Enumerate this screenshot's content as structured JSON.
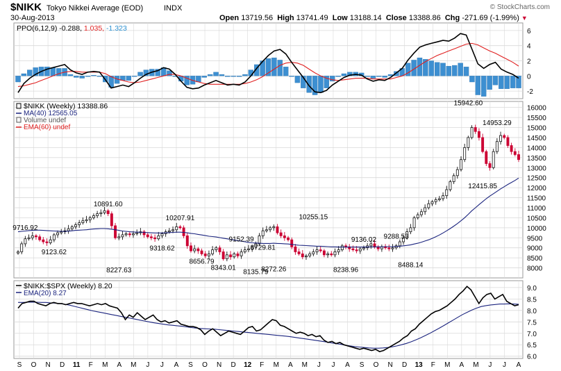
{
  "header": {
    "symbol": "$NIKK",
    "name": "Tokyo Nikkei Average (EOD)",
    "exchange": "INDX",
    "date": "30-Aug-2013",
    "watermark": "© StockCharts.com",
    "open_label": "Open",
    "open": "13719.56",
    "high_label": "High",
    "high": "13741.49",
    "low_label": "Low",
    "low": "13188.14",
    "close_label": "Close",
    "close": "13388.86",
    "chg_label": "Chg",
    "chg": "-271.69 (-1.99%)"
  },
  "colors": {
    "up": "#111111",
    "down": "#cc0033",
    "ma": "#1a237e",
    "ema": "#e02020",
    "ppo": "#000000",
    "hist": "#3d8fd1",
    "grid": "#d9d9d9",
    "frame": "#9a9a9a"
  },
  "chart_data": [
    {
      "type": "line",
      "panel": "ppo",
      "legend": [
        "PPO(6,12,9)",
        "-0.288,",
        "1.035,",
        "-1.323"
      ],
      "ylim": [
        -3,
        7
      ],
      "y_ticks": [
        "6",
        "4",
        "2",
        "0",
        "-2"
      ],
      "series": [
        {
          "name": "PPO",
          "values": [
            -2.2,
            -1.0,
            -0.3,
            0.2,
            0.6,
            0.9,
            1.1,
            1.3,
            1.5,
            0.8,
            0.4,
            0.2,
            0.5,
            0.6,
            0.5,
            -0.5,
            -1.6,
            -1.4,
            -1.2,
            -1.4,
            -0.9,
            -0.3,
            0.2,
            0.5,
            0.7,
            1.1,
            0.9,
            0.2,
            -0.7,
            -1.5,
            -1.7,
            -1.6,
            -1.2,
            -0.9,
            -0.6,
            -0.9,
            -1.2,
            -1.1,
            -1.2,
            -0.8,
            0.0,
            1.0,
            1.9,
            2.7,
            3.3,
            3.5,
            2.9,
            1.8,
            0.8,
            -0.2,
            -1.3,
            -2.1,
            -2.2,
            -1.9,
            -1.2,
            -0.7,
            -0.2,
            0.1,
            0.2,
            0.1,
            -0.4,
            -0.7,
            -0.5,
            -0.6,
            -0.2,
            0.4,
            1.0,
            2.1,
            3.0,
            3.8,
            4.1,
            4.3,
            4.5,
            4.7,
            4.6,
            5.0,
            5.6,
            5.4,
            3.5,
            1.6,
            1.0,
            1.5,
            1.8,
            0.9,
            0.5,
            0.2,
            -0.3
          ]
        },
        {
          "name": "Signal",
          "values": [
            -1.4,
            -1.3,
            -1.1,
            -0.9,
            -0.6,
            -0.3,
            0.0,
            0.3,
            0.5,
            0.6,
            0.6,
            0.5,
            0.5,
            0.5,
            0.5,
            0.3,
            -0.1,
            -0.4,
            -0.6,
            -0.8,
            -0.9,
            -0.8,
            -0.6,
            -0.4,
            -0.2,
            0.0,
            0.2,
            0.2,
            0.0,
            -0.3,
            -0.6,
            -0.8,
            -1.0,
            -1.1,
            -1.1,
            -1.1,
            -1.1,
            -1.1,
            -1.1,
            -1.0,
            -0.8,
            -0.5,
            -0.1,
            0.4,
            0.9,
            1.4,
            1.7,
            1.8,
            1.7,
            1.4,
            0.9,
            0.4,
            0.0,
            -0.3,
            -0.5,
            -0.6,
            -0.5,
            -0.4,
            -0.3,
            -0.3,
            -0.3,
            -0.4,
            -0.4,
            -0.4,
            -0.4,
            -0.2,
            0.0,
            0.4,
            0.9,
            1.4,
            1.9,
            2.3,
            2.7,
            3.0,
            3.3,
            3.6,
            3.9,
            4.2,
            4.3,
            4.1,
            3.7,
            3.3,
            3.0,
            2.6,
            2.2,
            1.8,
            1.3
          ]
        },
        {
          "name": "Histogram",
          "values": [
            -0.8,
            0.3,
            0.8,
            1.1,
            1.2,
            1.2,
            1.1,
            1.0,
            1.0,
            0.2,
            -0.2,
            -0.3,
            0.0,
            0.1,
            0.0,
            -0.8,
            -1.5,
            -1.0,
            -0.6,
            -0.6,
            0.0,
            0.5,
            0.8,
            0.9,
            0.9,
            1.1,
            0.7,
            0.0,
            -0.7,
            -1.2,
            -1.1,
            -0.8,
            -0.2,
            0.2,
            0.5,
            0.2,
            -0.1,
            0.0,
            -0.1,
            0.2,
            0.8,
            1.5,
            2.0,
            2.3,
            2.4,
            2.1,
            1.2,
            0.0,
            -0.9,
            -1.6,
            -2.2,
            -2.5,
            -2.2,
            -1.6,
            -0.7,
            -0.1,
            0.3,
            0.5,
            0.5,
            0.4,
            -0.1,
            -0.3,
            -0.1,
            -0.2,
            0.2,
            0.6,
            1.0,
            1.7,
            2.1,
            2.4,
            2.2,
            2.0,
            1.8,
            1.7,
            1.3,
            1.4,
            1.7,
            1.2,
            -0.8,
            -2.5,
            -2.7,
            -1.8,
            -1.2,
            -1.7,
            -1.7,
            -1.6,
            -1.6
          ]
        }
      ]
    },
    {
      "type": "candlestick",
      "panel": "price",
      "legend": [
        "$NIKK (Weekly) 13388.86",
        "MA(40) 12565.05",
        "Volume undef",
        "EMA(60) undef"
      ],
      "ylim": [
        7500,
        16300
      ],
      "y_ticks": [
        "16000",
        "15500",
        "15000",
        "14500",
        "14000",
        "13500",
        "13000",
        "12500",
        "12000",
        "11500",
        "11000",
        "10500",
        "10000",
        "9500",
        "9000",
        "8500",
        "8000"
      ],
      "close": [
        8800,
        9200,
        9450,
        9500,
        9600,
        9550,
        9400,
        9300,
        9250,
        9400,
        9650,
        9750,
        9800,
        9850,
        9950,
        10050,
        10150,
        10250,
        10350,
        10400,
        10500,
        10600,
        10700,
        10750,
        10850,
        10700,
        10100,
        9500,
        9550,
        9650,
        9700,
        9650,
        9700,
        9750,
        9800,
        9650,
        9550,
        9500,
        9450,
        9600,
        9700,
        9800,
        9850,
        9900,
        10050,
        10000,
        9600,
        9100,
        8850,
        8950,
        8850,
        8700,
        8600,
        8700,
        8900,
        9000,
        8800,
        8450,
        8650,
        8550,
        8700,
        8600,
        8800,
        8900,
        8950,
        9050,
        9200,
        9600,
        9850,
        9900,
        10000,
        10050,
        9750,
        9600,
        9500,
        9400,
        9050,
        8800,
        8700,
        8550,
        8600,
        8700,
        8800,
        8900,
        8850,
        8650,
        8700,
        8650,
        8800,
        8900,
        9100,
        9050,
        8950,
        8900,
        8850,
        8950,
        9000,
        9100,
        9200,
        9050,
        8950,
        9050,
        9000,
        8950,
        9000,
        9100,
        9300,
        9500,
        9800,
        10000,
        10500,
        10650,
        10800,
        11000,
        11200,
        11300,
        11400,
        11450,
        11600,
        11900,
        12300,
        12600,
        12900,
        13400,
        14000,
        14500,
        15000,
        14800,
        14500,
        13800,
        13200,
        13000,
        13800,
        14300,
        14600,
        14500,
        14100,
        13800,
        13650,
        13400
      ],
      "ma40": [
        9800,
        9820,
        9840,
        9860,
        9870,
        9880,
        9880,
        9870,
        9860,
        9850,
        9840,
        9830,
        9820,
        9820,
        9830,
        9850,
        9870,
        9880,
        9890,
        9900,
        9920,
        9940,
        9950,
        9960,
        9960,
        9950,
        9930,
        9900,
        9870,
        9840,
        9820,
        9800,
        9790,
        9780,
        9780,
        9770,
        9760,
        9750,
        9740,
        9740,
        9740,
        9750,
        9760,
        9770,
        9780,
        9780,
        9770,
        9750,
        9720,
        9700,
        9670,
        9640,
        9610,
        9580,
        9560,
        9540,
        9510,
        9480,
        9450,
        9420,
        9390,
        9360,
        9330,
        9300,
        9270,
        9250,
        9240,
        9230,
        9220,
        9220,
        9220,
        9230,
        9220,
        9210,
        9200,
        9190,
        9170,
        9150,
        9130,
        9120,
        9110,
        9100,
        9090,
        9080,
        9080,
        9070,
        9060,
        9050,
        9050,
        9040,
        9040,
        9040,
        9040,
        9040,
        9040,
        9040,
        9040,
        9040,
        9050,
        9050,
        9050,
        9050,
        9060,
        9060,
        9060,
        9070,
        9080,
        9100,
        9120,
        9150,
        9190,
        9230,
        9280,
        9340,
        9400,
        9470,
        9550,
        9640,
        9740,
        9850,
        9960,
        10080,
        10210,
        10350,
        10500,
        10670,
        10850,
        11000,
        11150,
        11300,
        11450,
        11580,
        11700,
        11820,
        11940,
        12050,
        12160,
        12260,
        12360,
        12480
      ],
      "annotations": [
        {
          "text": "9716.92",
          "i": 2,
          "v": 9716.92,
          "pos": "above"
        },
        {
          "text": "9123.62",
          "i": 10,
          "v": 9123.62,
          "pos": "below"
        },
        {
          "text": "10891.60",
          "i": 25,
          "v": 10891.6,
          "pos": "above"
        },
        {
          "text": "8227.63",
          "i": 28,
          "v": 8227.63,
          "pos": "below"
        },
        {
          "text": "10207.91",
          "i": 45,
          "v": 10207.91,
          "pos": "above"
        },
        {
          "text": "9318.62",
          "i": 40,
          "v": 9318.62,
          "pos": "below"
        },
        {
          "text": "8656.79",
          "i": 51,
          "v": 8656.79,
          "pos": "below"
        },
        {
          "text": "8343.01",
          "i": 57,
          "v": 8343.01,
          "pos": "below"
        },
        {
          "text": "9152.39",
          "i": 62,
          "v": 9152.39,
          "pos": "above"
        },
        {
          "text": "8729.81",
          "i": 68,
          "v": 8729.81,
          "pos": "above"
        },
        {
          "text": "8135.79",
          "i": 66,
          "v": 8135.79,
          "pos": "below"
        },
        {
          "text": "8272.26",
          "i": 71,
          "v": 8272.26,
          "pos": "below"
        },
        {
          "text": "10255.15",
          "i": 82,
          "v": 10255.15,
          "pos": "above"
        },
        {
          "text": "8238.96",
          "i": 91,
          "v": 8238.96,
          "pos": "below"
        },
        {
          "text": "9136.02",
          "i": 96,
          "v": 9136.02,
          "pos": "above"
        },
        {
          "text": "9288.53",
          "i": 105,
          "v": 9288.53,
          "pos": "above"
        },
        {
          "text": "8488.14",
          "i": 109,
          "v": 8488.14,
          "pos": "below"
        },
        {
          "text": "15942.60",
          "i": 125,
          "v": 15942.6,
          "pos": "above"
        },
        {
          "text": "12415.85",
          "i": 129,
          "v": 12415.85,
          "pos": "below"
        },
        {
          "text": "14953.29",
          "i": 133,
          "v": 14953.29,
          "pos": "above"
        }
      ]
    },
    {
      "type": "line",
      "panel": "ratio",
      "legend": [
        "$NIKK:$SPX (Weekly) 8.20",
        "EMA(20) 8.27"
      ],
      "ylim": [
        5.9,
        9.3
      ],
      "y_ticks": [
        "9.0",
        "8.5",
        "8.0",
        "7.5",
        "7.0",
        "6.5",
        "6.0"
      ],
      "series": [
        {
          "name": "$NIKK:$SPX",
          "values": [
            8.1,
            8.3,
            8.35,
            8.4,
            8.4,
            8.3,
            8.25,
            8.2,
            8.3,
            8.35,
            8.3,
            8.3,
            8.25,
            8.3,
            8.35,
            8.3,
            8.3,
            8.25,
            8.2,
            8.25,
            8.3,
            8.25,
            8.3,
            8.2,
            8.15,
            8.1,
            7.9,
            7.6,
            7.8,
            7.7,
            7.9,
            7.75,
            7.6,
            7.7,
            7.8,
            7.6,
            7.5,
            7.55,
            7.45,
            7.5,
            7.55,
            7.4,
            7.35,
            7.3,
            7.3,
            7.25,
            7.15,
            6.95,
            7.1,
            7.2,
            7.05,
            6.9,
            7.0,
            7.1,
            7.05,
            7.0,
            6.95,
            7.1,
            7.25,
            7.3,
            7.1,
            7.15,
            7.3,
            7.45,
            7.6,
            7.55,
            7.35,
            7.3,
            7.2,
            7.1,
            7.0,
            7.05,
            7.0,
            6.9,
            6.95,
            6.85,
            6.9,
            6.7,
            6.6,
            6.65,
            6.55,
            6.6,
            6.5,
            6.45,
            6.4,
            6.35,
            6.3,
            6.35,
            6.3,
            6.25,
            6.3,
            6.2,
            6.25,
            6.35,
            6.45,
            6.55,
            6.65,
            6.8,
            6.9,
            7.1,
            7.2,
            7.4,
            7.55,
            7.7,
            7.85,
            7.95,
            8.0,
            8.1,
            8.2,
            8.35,
            8.5,
            8.7,
            8.85,
            9.05,
            8.9,
            8.6,
            8.3,
            8.55,
            8.7,
            8.75,
            8.5,
            8.6,
            8.7,
            8.4,
            8.3,
            8.2,
            8.25
          ]
        },
        {
          "name": "EMA(20)",
          "values": [
            8.35,
            8.35,
            8.36,
            8.36,
            8.36,
            8.35,
            8.35,
            8.33,
            8.32,
            8.3,
            8.27,
            8.23,
            8.18,
            8.13,
            8.08,
            8.03,
            7.98,
            7.94,
            7.9,
            7.86,
            7.82,
            7.78,
            7.74,
            7.7,
            7.66,
            7.62,
            7.58,
            7.54,
            7.5,
            7.46,
            7.43,
            7.4,
            7.37,
            7.35,
            7.33,
            7.31,
            7.28,
            7.25,
            7.23,
            7.21,
            7.2,
            7.19,
            7.18,
            7.16,
            7.14,
            7.12,
            7.1,
            7.08,
            7.06,
            7.04,
            7.02,
            7.0,
            6.98,
            6.96,
            6.94,
            6.92,
            6.9,
            6.88,
            6.86,
            6.83,
            6.8,
            6.77,
            6.74,
            6.71,
            6.68,
            6.65,
            6.62,
            6.58,
            6.55,
            6.52,
            6.48,
            6.45,
            6.42,
            6.4,
            6.38,
            6.36,
            6.35,
            6.35,
            6.36,
            6.38,
            6.41,
            6.45,
            6.5,
            6.56,
            6.63,
            6.71,
            6.8,
            6.9,
            7.0,
            7.11,
            7.22,
            7.34,
            7.46,
            7.58,
            7.7,
            7.82,
            7.92,
            8.02,
            8.1,
            8.17,
            8.21,
            8.24,
            8.26,
            8.28,
            8.28,
            8.29,
            8.28,
            8.27
          ]
        }
      ]
    }
  ],
  "x_axis": {
    "labels": [
      "S",
      "O",
      "N",
      "D",
      "11",
      "F",
      "M",
      "A",
      "M",
      "J",
      "J",
      "A",
      "S",
      "O",
      "N",
      "D",
      "12",
      "F",
      "M",
      "A",
      "M",
      "J",
      "J",
      "A",
      "S",
      "O",
      "N",
      "D",
      "13",
      "F",
      "M",
      "A",
      "M",
      "J",
      "J",
      "A"
    ],
    "bold": [
      "11",
      "12",
      "13"
    ]
  }
}
